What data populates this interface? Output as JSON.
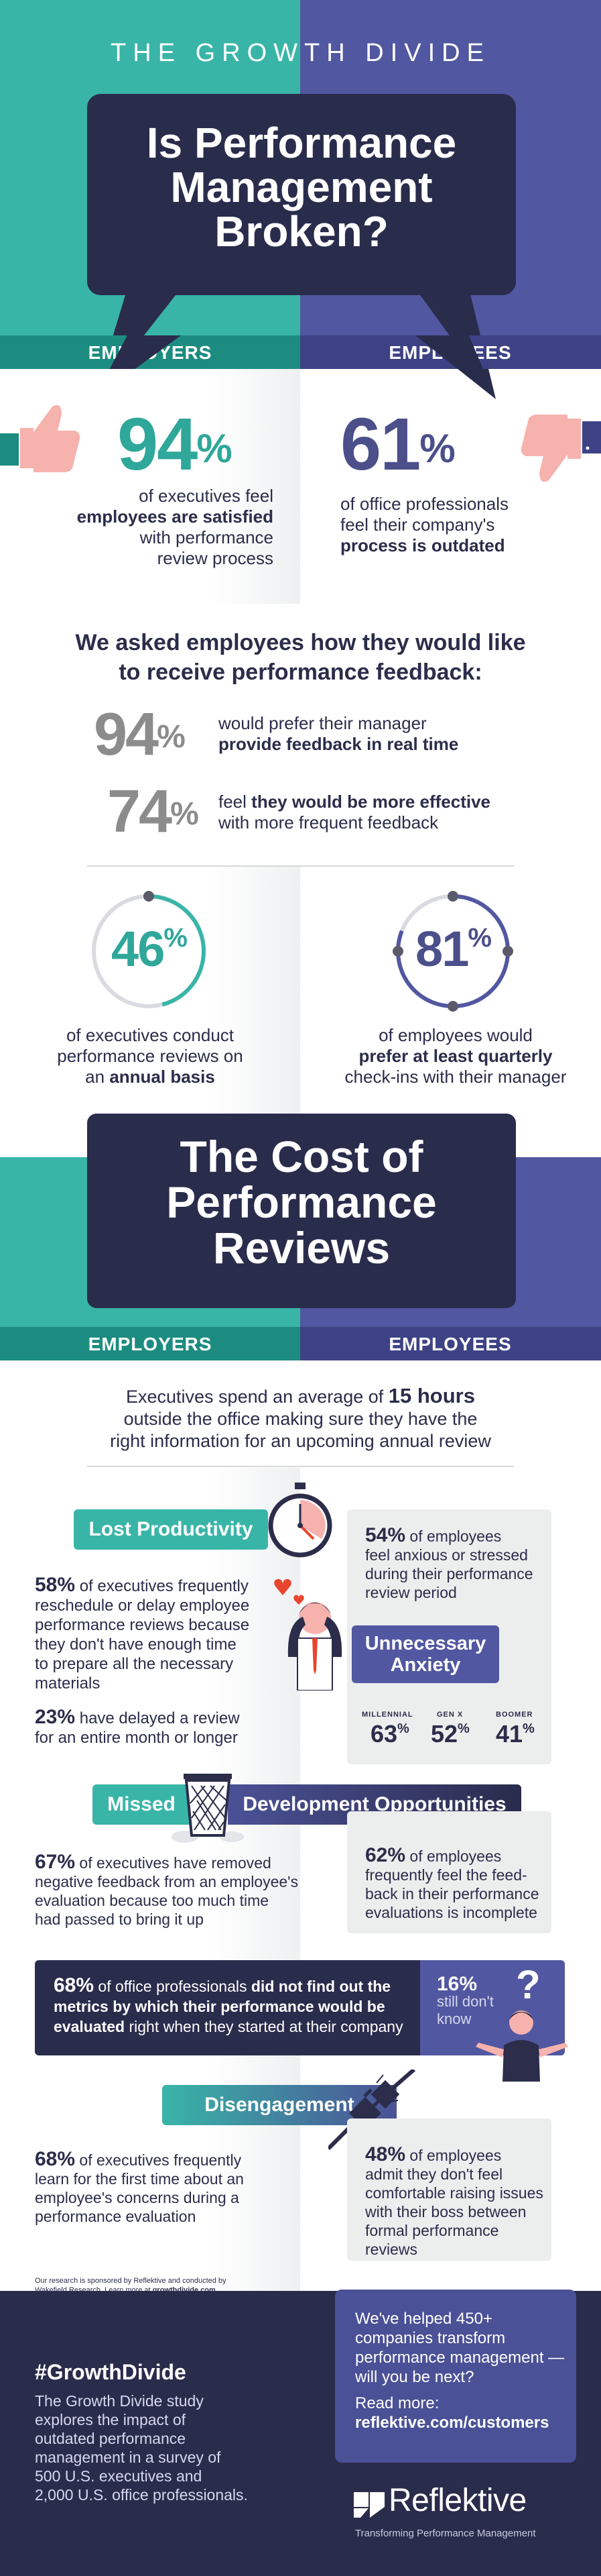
{
  "header": {
    "kicker": "THE GROWTH DIVIDE",
    "title_line1": "Is Performance",
    "title_line2": "Management",
    "title_line3": "Broken?"
  },
  "labels": {
    "employers": "EMPLOYERS",
    "employees": "EMPLOYEES"
  },
  "stat_employers": {
    "value": "94",
    "unit": "%",
    "line1": "of executives feel",
    "line2_bold": "employees are satisfied",
    "line3": "with performance",
    "line4": "review process"
  },
  "stat_employees": {
    "value": "61",
    "unit": "%",
    "line1": "of office professionals",
    "line2": "feel their company's",
    "line3_bold": "process is outdated"
  },
  "feedback": {
    "heading_line1": "We asked employees how they would like",
    "heading_line2": "to receive performance feedback:",
    "item1": {
      "value": "94",
      "unit": "%",
      "line1": "would prefer their manager",
      "line2_bold": "provide feedback in real time"
    },
    "item2": {
      "value": "74",
      "unit": "%",
      "line1_pre": "feel ",
      "line1_bold": "they would be more effective",
      "line2": "with more frequent feedback"
    }
  },
  "rings": {
    "left": {
      "value": "46",
      "unit": "%",
      "line1": "of executives conduct",
      "line2": "performance reviews on",
      "line3_pre": "an ",
      "line3_bold": "annual basis",
      "fill": 0.46
    },
    "right": {
      "value": "81",
      "unit": "%",
      "line1": "of employees would",
      "line2_bold": "prefer at least quarterly",
      "line3": "check-ins with their manager",
      "fill": 0.81
    }
  },
  "cost": {
    "title_line1": "The Cost of",
    "title_line2": "Performance",
    "title_line3": "Reviews",
    "intro_line1_pre": "Executives spend an average of ",
    "intro_line1_bold": "15 hours",
    "intro_line2": "outside the office making sure they have the",
    "intro_line3": "right information for an upcoming annual review"
  },
  "lost_productivity": {
    "label": "Lost Productivity",
    "p1_bold": "58%",
    "p1_l1": " of executives frequently",
    "p1_l2": "reschedule or delay employee",
    "p1_l3": "performance reviews because",
    "p1_l4": "they don't have enough time",
    "p1_l5": "to prepare all the necessary",
    "p1_l6": "materials",
    "p2_bold": "23%",
    "p2_l1": " have delayed a review",
    "p2_l2": "for an entire month or longer"
  },
  "anxiety": {
    "label_line1": "Unnecessary",
    "label_line2": "Anxiety",
    "stat_bold": "54%",
    "l1": " of employees",
    "l2": "feel anxious or stressed",
    "l3": "during their performance",
    "l4": "review period",
    "gens": [
      {
        "label": "MILLENNIAL",
        "value": "63",
        "unit": "%"
      },
      {
        "label": "GEN X",
        "value": "52",
        "unit": "%"
      },
      {
        "label": "BOOMER",
        "value": "41",
        "unit": "%"
      }
    ]
  },
  "missed": {
    "label_left": "Missed",
    "label_right": "Development Opportunities",
    "left_bold": "67%",
    "left_l1": " of executives have removed",
    "left_l2": "negative feedback from an employee's",
    "left_l3": "evaluation because too much time",
    "left_l4": "had passed to bring it up",
    "right_bold": "62%",
    "right_l1": " of employees",
    "right_l2": "frequently feel the feed-",
    "right_l3": "back in their performance",
    "right_l4": "evaluations is incomplete"
  },
  "metrics": {
    "bold1": "68%",
    "l1_a": " of office professionals ",
    "l1_b": "did not find out the",
    "l2": "metrics by which their performance would be",
    "l3_bold": "evaluated",
    "l3_rest": " right when they started at their company",
    "side_bold": "16%",
    "side_l1": "still don't",
    "side_l2": "know",
    "q": "?"
  },
  "disengagement": {
    "label": "Disengagement",
    "left_bold": "68%",
    "left_l1": " of executives frequently",
    "left_l2": "learn for the first time about an",
    "left_l3": "employee's concerns during a",
    "left_l4": "performance evaluation",
    "right_bold": "48%",
    "right_l1": " of employees",
    "right_l2": "admit they don't feel",
    "right_l3": "comfortable raising issues",
    "right_l4": "with their boss between",
    "right_l5": "formal performance reviews"
  },
  "research_note": {
    "l1": "Our research is sponsored by Reflektive and conducted by",
    "l2_pre": "Wakefield Research. Learn more at ",
    "l2_bold": "growthdivide.com",
    "l2_end": "."
  },
  "cta": {
    "l1": "We've helped 450+",
    "l2": "companies transform",
    "l3": "performance management —",
    "l4": "will you be next?",
    "read_more": "Read more:",
    "link": "reflektive.com/customers"
  },
  "footer": {
    "hashtag": "#GrowthDivide",
    "l1": "The Growth Divide study",
    "l2": "explores the impact of",
    "l3": "outdated performance",
    "l4": "management in a survey of",
    "l5": "500 U.S. executives and",
    "l6": "2,000 U.S. office professionals.",
    "brand": "Reflektive",
    "tagline": "Transforming Performance Management"
  },
  "colors": {
    "teal": "#39b5a8",
    "indigo": "#5157a0",
    "navy": "#2a2c4c",
    "salmon": "#f6b2ad"
  },
  "icons": [
    "thumbs-up-icon",
    "thumbs-down-icon",
    "stopwatch-icon",
    "trash-can-icon",
    "plug-icon",
    "person-icon"
  ]
}
